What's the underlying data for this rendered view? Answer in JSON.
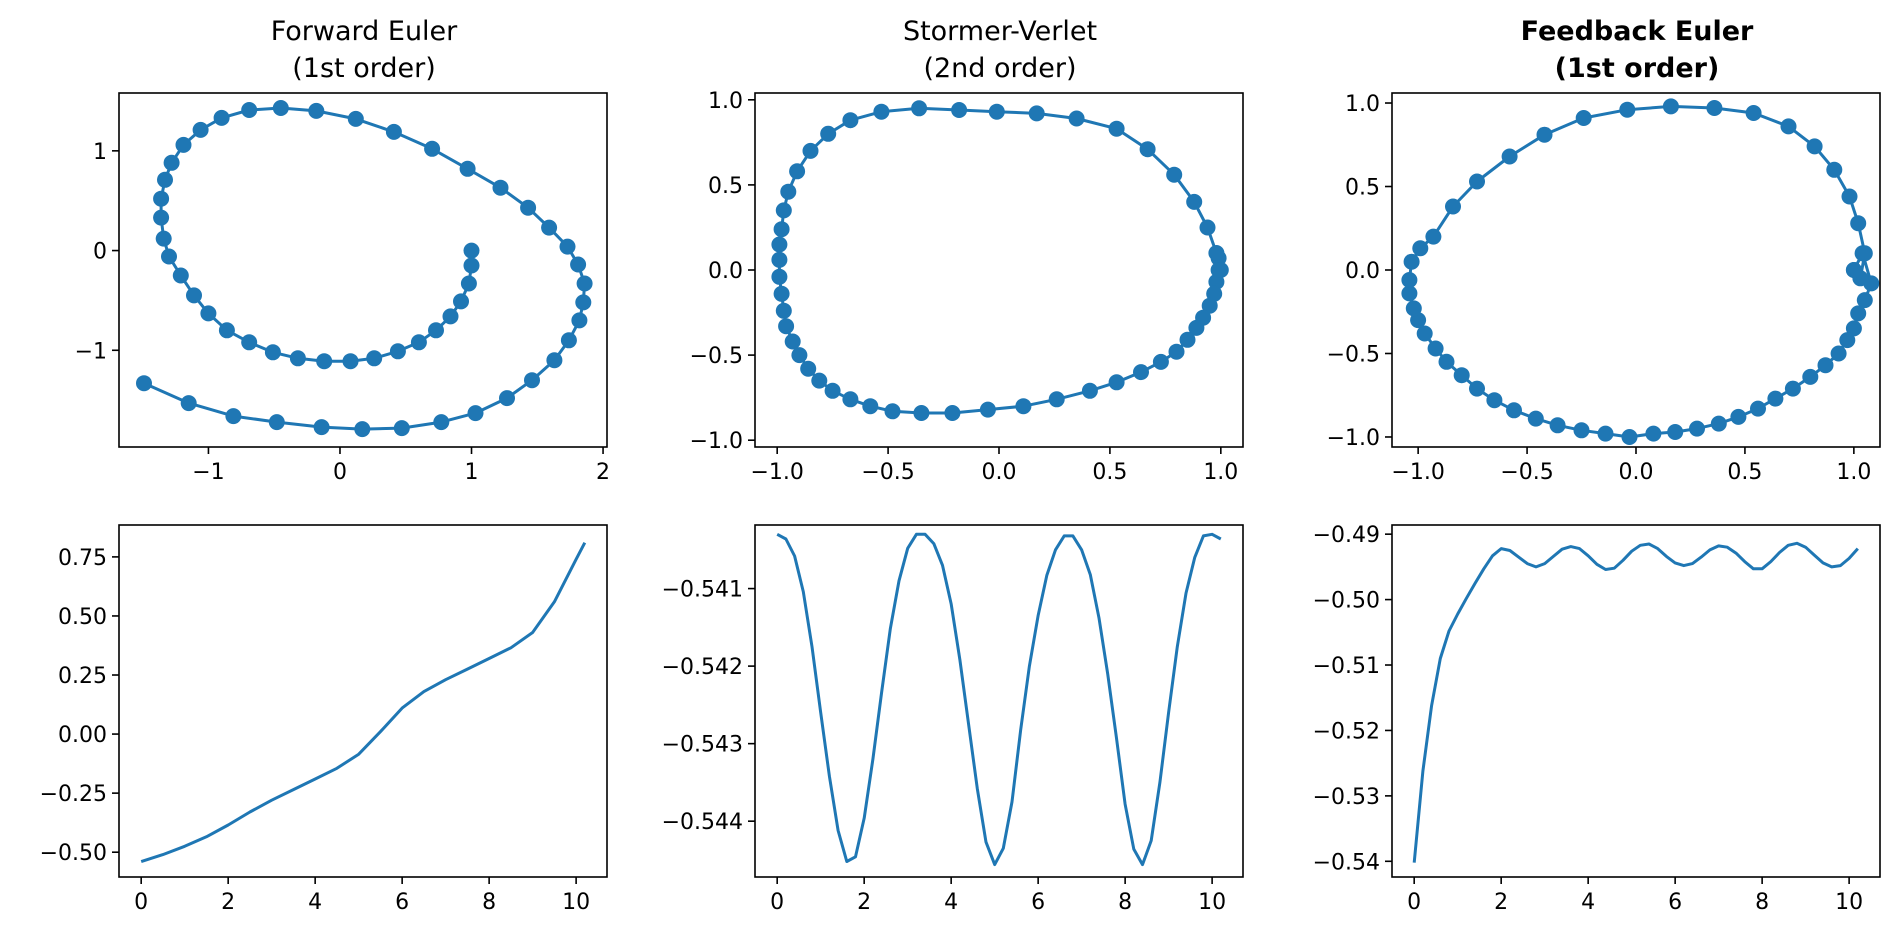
{
  "accent_color": "#1f77b4",
  "panels": [
    {
      "title": [
        "Forward Euler",
        "(1st order)"
      ],
      "bold": false
    },
    {
      "title": [
        "Stormer-Verlet",
        "(2nd order)"
      ],
      "bold": false
    },
    {
      "title": [
        "Feedback Euler",
        "(1st order)"
      ],
      "bold": true
    }
  ],
  "chart_data": [
    {
      "type": "line",
      "markers": true,
      "xlim": [
        -1.68,
        2.03
      ],
      "ylim": [
        -1.97,
        1.58
      ],
      "xticks": [
        -1,
        0,
        1,
        2
      ],
      "yticks": [
        -1,
        0,
        1
      ],
      "x": [
        1.0,
        1.0,
        0.98,
        0.92,
        0.84,
        0.73,
        0.6,
        0.44,
        0.26,
        0.08,
        -0.12,
        -0.32,
        -0.51,
        -0.69,
        -0.86,
        -1.0,
        -1.11,
        -1.21,
        -1.3,
        -1.34,
        -1.36,
        -1.36,
        -1.33,
        -1.28,
        -1.19,
        -1.06,
        -0.9,
        -0.69,
        -0.45,
        -0.18,
        0.12,
        0.41,
        0.7,
        0.97,
        1.22,
        1.43,
        1.59,
        1.73,
        1.81,
        1.86,
        1.85,
        1.82,
        1.74,
        1.63,
        1.46,
        1.27,
        1.03,
        0.77,
        0.47,
        0.17,
        -0.14,
        -0.48,
        -0.81,
        -1.15,
        -1.49
      ],
      "y": [
        0.0,
        -0.15,
        -0.33,
        -0.51,
        -0.66,
        -0.8,
        -0.92,
        -1.01,
        -1.08,
        -1.11,
        -1.11,
        -1.08,
        -1.02,
        -0.92,
        -0.8,
        -0.63,
        -0.45,
        -0.25,
        -0.06,
        0.12,
        0.33,
        0.52,
        0.71,
        0.88,
        1.06,
        1.21,
        1.33,
        1.41,
        1.43,
        1.4,
        1.32,
        1.19,
        1.02,
        0.82,
        0.63,
        0.43,
        0.23,
        0.04,
        -0.14,
        -0.33,
        -0.52,
        -0.7,
        -0.9,
        -1.1,
        -1.3,
        -1.48,
        -1.63,
        -1.72,
        -1.78,
        -1.79,
        -1.77,
        -1.72,
        -1.66,
        -1.53,
        -1.33
      ]
    },
    {
      "type": "line",
      "markers": true,
      "xlim": [
        -1.1,
        1.1
      ],
      "ylim": [
        -1.04,
        1.04
      ],
      "xticks": [
        -1.0,
        -0.5,
        0.0,
        0.5,
        1.0
      ],
      "yticks": [
        -1.0,
        -0.5,
        0.0,
        0.5,
        1.0
      ],
      "x": [
        0.99,
        0.99,
        0.98,
        0.97,
        0.95,
        0.92,
        0.89,
        0.85,
        0.8,
        0.73,
        0.64,
        0.53,
        0.41,
        0.26,
        0.11,
        -0.05,
        -0.21,
        -0.35,
        -0.48,
        -0.58,
        -0.67,
        -0.75,
        -0.81,
        -0.86,
        -0.9,
        -0.93,
        -0.96,
        -0.97,
        -0.98,
        -0.99,
        -0.99,
        -0.99,
        -0.98,
        -0.97,
        -0.95,
        -0.91,
        -0.85,
        -0.77,
        -0.67,
        -0.53,
        -0.36,
        -0.18,
        -0.01,
        0.17,
        0.35,
        0.53,
        0.67,
        0.79,
        0.88,
        0.94,
        0.98,
        1.0
      ],
      "y": [
        0.07,
        0.0,
        -0.07,
        -0.14,
        -0.21,
        -0.28,
        -0.34,
        -0.41,
        -0.48,
        -0.54,
        -0.6,
        -0.66,
        -0.71,
        -0.76,
        -0.8,
        -0.82,
        -0.84,
        -0.84,
        -0.83,
        -0.8,
        -0.76,
        -0.71,
        -0.65,
        -0.58,
        -0.5,
        -0.42,
        -0.33,
        -0.24,
        -0.14,
        -0.04,
        0.06,
        0.15,
        0.24,
        0.35,
        0.46,
        0.58,
        0.7,
        0.8,
        0.88,
        0.93,
        0.95,
        0.94,
        0.93,
        0.92,
        0.89,
        0.83,
        0.71,
        0.56,
        0.4,
        0.25,
        0.1,
        0.0
      ]
    },
    {
      "type": "line",
      "markers": true,
      "xlim": [
        -1.12,
        1.12
      ],
      "ylim": [
        -1.06,
        1.06
      ],
      "xticks": [
        -1.0,
        -0.5,
        0.0,
        0.5,
        1.0
      ],
      "yticks": [
        -1.0,
        -0.5,
        0.0,
        0.5,
        1.0
      ],
      "x": [
        1.0,
        1.04,
        1.08,
        1.05,
        1.02,
        1.0,
        0.97,
        0.93,
        0.87,
        0.8,
        0.72,
        0.64,
        0.56,
        0.47,
        0.38,
        0.28,
        0.18,
        0.08,
        -0.03,
        -0.14,
        -0.25,
        -0.36,
        -0.46,
        -0.56,
        -0.65,
        -0.73,
        -0.8,
        -0.87,
        -0.92,
        -0.97,
        -1.0,
        -1.02,
        -1.04,
        -1.04,
        -1.03,
        -0.99,
        -0.93,
        -0.84,
        -0.73,
        -0.58,
        -0.42,
        -0.24,
        -0.04,
        0.16,
        0.36,
        0.54,
        0.7,
        0.82,
        0.91,
        0.98,
        1.02,
        1.05,
        1.03,
        1.0
      ],
      "y": [
        0.0,
        0.1,
        -0.08,
        -0.18,
        -0.26,
        -0.35,
        -0.42,
        -0.5,
        -0.57,
        -0.64,
        -0.71,
        -0.77,
        -0.83,
        -0.88,
        -0.92,
        -0.95,
        -0.97,
        -0.98,
        -1.0,
        -0.98,
        -0.96,
        -0.93,
        -0.89,
        -0.84,
        -0.78,
        -0.71,
        -0.63,
        -0.55,
        -0.47,
        -0.38,
        -0.3,
        -0.23,
        -0.14,
        -0.06,
        0.05,
        0.13,
        0.2,
        0.38,
        0.53,
        0.68,
        0.81,
        0.91,
        0.96,
        0.98,
        0.97,
        0.94,
        0.86,
        0.74,
        0.6,
        0.44,
        0.28,
        0.1,
        -0.05,
        0.0
      ]
    },
    {
      "type": "line",
      "markers": false,
      "xlim": [
        -0.51,
        10.71
      ],
      "ylim": [
        -0.605,
        0.885
      ],
      "xticks": [
        0,
        2,
        4,
        6,
        8,
        10
      ],
      "yticks": [
        -0.5,
        -0.25,
        0.0,
        0.25,
        0.5,
        0.75
      ],
      "x": [
        0,
        0.5,
        1,
        1.5,
        2,
        2.5,
        3,
        3.5,
        4,
        4.5,
        5,
        5.5,
        6,
        6.5,
        7,
        7.5,
        8,
        8.5,
        9,
        9.5,
        10,
        10.2
      ],
      "y": [
        -0.54,
        -0.51,
        -0.475,
        -0.435,
        -0.385,
        -0.33,
        -0.28,
        -0.235,
        -0.19,
        -0.145,
        -0.085,
        0.01,
        0.11,
        0.18,
        0.23,
        0.275,
        0.32,
        0.365,
        0.43,
        0.56,
        0.74,
        0.81
      ]
    },
    {
      "type": "line",
      "markers": false,
      "xlim": [
        -0.51,
        10.71
      ],
      "ylim": [
        -0.54472,
        -0.54018
      ],
      "xticks": [
        0,
        2,
        4,
        6,
        8,
        10
      ],
      "yticks": [
        -0.541,
        -0.542,
        -0.543,
        -0.544
      ],
      "x": [
        0,
        0.2,
        0.4,
        0.6,
        0.8,
        1.0,
        1.2,
        1.4,
        1.6,
        1.8,
        2.0,
        2.2,
        2.4,
        2.6,
        2.8,
        3.0,
        3.2,
        3.4,
        3.6,
        3.8,
        4.0,
        4.2,
        4.4,
        4.6,
        4.8,
        5.0,
        5.2,
        5.4,
        5.6,
        5.8,
        6.0,
        6.2,
        6.4,
        6.6,
        6.8,
        7.0,
        7.2,
        7.4,
        7.6,
        7.8,
        8.0,
        8.2,
        8.4,
        8.6,
        8.8,
        9.0,
        9.2,
        9.4,
        9.6,
        9.8,
        10.0,
        10.2
      ],
      "y": [
        -0.5403,
        -0.54036,
        -0.54058,
        -0.54104,
        -0.54175,
        -0.5426,
        -0.54342,
        -0.54412,
        -0.54452,
        -0.54446,
        -0.54396,
        -0.5432,
        -0.54234,
        -0.54152,
        -0.5409,
        -0.54048,
        -0.5403,
        -0.5403,
        -0.54042,
        -0.5407,
        -0.5412,
        -0.54192,
        -0.54275,
        -0.54358,
        -0.54427,
        -0.54456,
        -0.54435,
        -0.54375,
        -0.54282,
        -0.542,
        -0.54135,
        -0.54083,
        -0.5405,
        -0.54032,
        -0.54032,
        -0.5405,
        -0.54082,
        -0.54138,
        -0.5421,
        -0.54292,
        -0.54378,
        -0.54436,
        -0.54456,
        -0.54425,
        -0.5435,
        -0.5426,
        -0.54175,
        -0.54106,
        -0.5406,
        -0.54032,
        -0.5403,
        -0.54036
      ]
    },
    {
      "type": "line",
      "markers": false,
      "xlim": [
        -0.51,
        10.71
      ],
      "ylim": [
        -0.5424,
        -0.4886
      ],
      "xticks": [
        0,
        2,
        4,
        6,
        8,
        10
      ],
      "yticks": [
        -0.49,
        -0.5,
        -0.51,
        -0.52,
        -0.53,
        -0.54
      ],
      "x": [
        0,
        0.2,
        0.4,
        0.6,
        0.8,
        1.0,
        1.2,
        1.4,
        1.6,
        1.8,
        2.0,
        2.2,
        2.4,
        2.6,
        2.8,
        3.0,
        3.2,
        3.4,
        3.6,
        3.8,
        4.0,
        4.2,
        4.4,
        4.6,
        4.8,
        5.0,
        5.2,
        5.4,
        5.6,
        5.8,
        6.0,
        6.2,
        6.4,
        6.6,
        6.8,
        7.0,
        7.2,
        7.4,
        7.6,
        7.8,
        8.0,
        8.2,
        8.4,
        8.6,
        8.8,
        9.0,
        9.2,
        9.4,
        9.6,
        9.8,
        10.0,
        10.2
      ],
      "y": [
        -0.5402,
        -0.5262,
        -0.5162,
        -0.509,
        -0.5048,
        -0.5022,
        -0.4998,
        -0.4975,
        -0.4953,
        -0.4933,
        -0.4922,
        -0.4925,
        -0.4935,
        -0.4945,
        -0.495,
        -0.4945,
        -0.4934,
        -0.4923,
        -0.4919,
        -0.4922,
        -0.4933,
        -0.4946,
        -0.4954,
        -0.4952,
        -0.494,
        -0.4926,
        -0.4917,
        -0.4915,
        -0.4922,
        -0.4934,
        -0.4944,
        -0.4948,
        -0.4945,
        -0.4935,
        -0.4924,
        -0.4918,
        -0.492,
        -0.4929,
        -0.4942,
        -0.4953,
        -0.4953,
        -0.4942,
        -0.4928,
        -0.4917,
        -0.4914,
        -0.492,
        -0.4932,
        -0.4944,
        -0.495,
        -0.4948,
        -0.4937,
        -0.4922
      ]
    }
  ]
}
